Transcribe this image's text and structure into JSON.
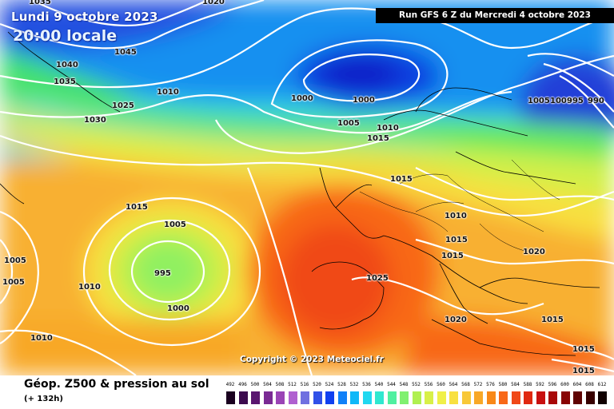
{
  "header": {
    "date": "Lundi 9 octobre 2023",
    "time": "20:00 locale",
    "run": "Run GFS 6 Z du Mercredi 4 octobre 2023"
  },
  "copyright": "Copyright © 2023 Meteociel.fr",
  "footer": {
    "title": "Géop. Z500 & pression au sol",
    "subtitle": "(+ 132h)"
  },
  "isobar_labels": [
    "1035",
    "1020",
    "1045",
    "1040",
    "1035",
    "1010",
    "1025",
    "1030",
    "1000",
    "1000",
    "1005",
    "1010",
    "1015",
    "1005",
    "1000",
    "995",
    "990",
    "1015",
    "1010",
    "1015",
    "1015",
    "1020",
    "1015",
    "1005",
    "995",
    "1000",
    "1010",
    "1005",
    "1005",
    "1025",
    "1020",
    "1015",
    "1015",
    "1010",
    "1015"
  ],
  "scale": {
    "ticks": [
      "492",
      "496",
      "500",
      "504",
      "508",
      "512",
      "516",
      "520",
      "524",
      "528",
      "532",
      "536",
      "540",
      "544",
      "548",
      "552",
      "556",
      "560",
      "564",
      "568",
      "572",
      "576",
      "580",
      "584",
      "588",
      "592",
      "596",
      "600",
      "604",
      "608",
      "612"
    ],
    "colors": [
      "#1a0020",
      "#3c0a4e",
      "#5a1670",
      "#7a2a94",
      "#9a44b6",
      "#b060d0",
      "#7070e0",
      "#3050e8",
      "#1040f0",
      "#1080f8",
      "#10b8f8",
      "#20d8f0",
      "#30e8d0",
      "#50f0a0",
      "#80f070",
      "#b0f050",
      "#d8f048",
      "#f0f048",
      "#f8e040",
      "#f8c838",
      "#f8a828",
      "#f88818",
      "#f86818",
      "#f04818",
      "#e02810",
      "#c81010",
      "#a80808",
      "#880404",
      "#600202",
      "#380000",
      "#100000"
    ]
  }
}
